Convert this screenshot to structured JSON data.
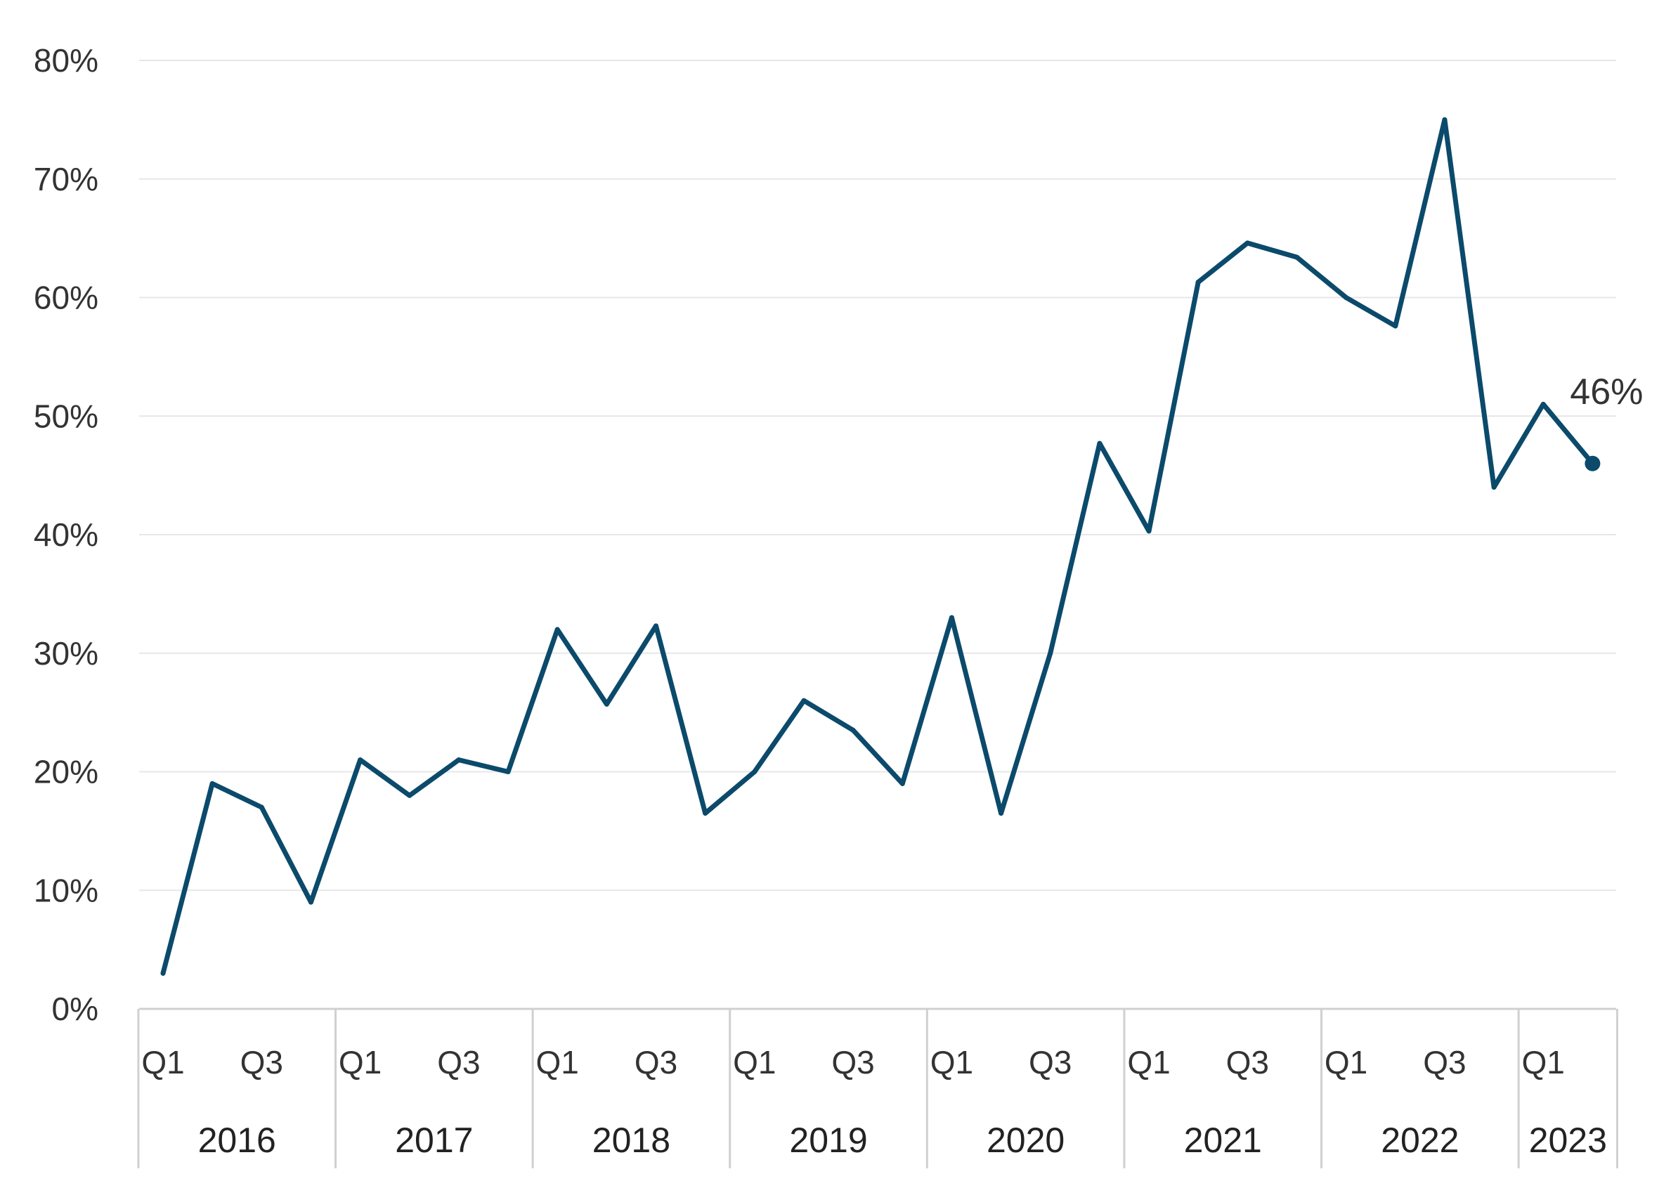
{
  "chart_data": {
    "type": "line",
    "title": "",
    "xlabel": "",
    "ylabel": "",
    "ylim": [
      0,
      80
    ],
    "y_ticks": [
      0,
      10,
      20,
      30,
      40,
      50,
      60,
      70,
      80
    ],
    "y_tick_labels": [
      "0%",
      "10%",
      "20%",
      "30%",
      "40%",
      "50%",
      "60%",
      "70%",
      "80%"
    ],
    "grid": true,
    "legend": "none",
    "line_color": "#0b4a6b",
    "years": [
      "2016",
      "2017",
      "2018",
      "2019",
      "2020",
      "2021",
      "2022",
      "2023"
    ],
    "quarters_per_year": [
      4,
      4,
      4,
      4,
      4,
      4,
      4,
      2
    ],
    "quarter_tick_labels": [
      "Q1",
      "",
      "Q3",
      "",
      "Q1",
      "",
      "Q3",
      "",
      "Q1",
      "",
      "Q3",
      "",
      "Q1",
      "",
      "Q3",
      "",
      "Q1",
      "",
      "Q3",
      "",
      "Q1",
      "",
      "Q3",
      "",
      "Q1",
      "",
      "Q3",
      "",
      "Q1",
      ""
    ],
    "x": [
      "2016 Q1",
      "2016 Q2",
      "2016 Q3",
      "2016 Q4",
      "2017 Q1",
      "2017 Q2",
      "2017 Q3",
      "2017 Q4",
      "2018 Q1",
      "2018 Q2",
      "2018 Q3",
      "2018 Q4",
      "2019 Q1",
      "2019 Q2",
      "2019 Q3",
      "2019 Q4",
      "2020 Q1",
      "2020 Q2",
      "2020 Q3",
      "2020 Q4",
      "2021 Q1",
      "2021 Q2",
      "2021 Q3",
      "2021 Q4",
      "2022 Q1",
      "2022 Q2",
      "2022 Q3",
      "2022 Q4",
      "2023 Q1",
      "2023 Q2"
    ],
    "series": [
      {
        "values": [
          3,
          19,
          17,
          9,
          21,
          18,
          21,
          20,
          32,
          25.7,
          32.3,
          16.5,
          20,
          26,
          23.5,
          19,
          33,
          16.5,
          30,
          47.7,
          40.3,
          61.3,
          64.6,
          63.4,
          60,
          57.6,
          75,
          44,
          51,
          46
        ]
      }
    ],
    "end_label": "46%"
  }
}
